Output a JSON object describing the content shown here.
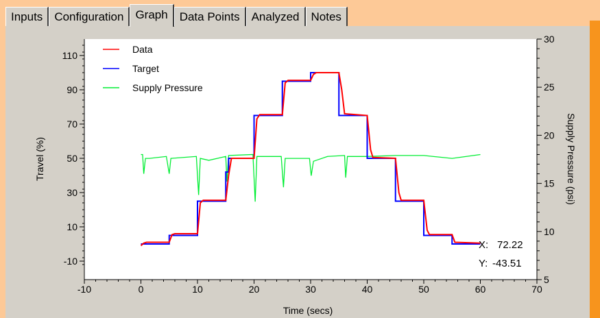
{
  "tabs": [
    {
      "label": "Inputs"
    },
    {
      "label": "Configuration"
    },
    {
      "label": "Graph",
      "active": true
    },
    {
      "label": "Data Points"
    },
    {
      "label": "Analyzed"
    },
    {
      "label": "Notes"
    }
  ],
  "colors": {
    "background": "#fdc997",
    "accent": "#f7941d",
    "panel": "#d4d0c8"
  },
  "chart_data": {
    "type": "line",
    "xlabel": "Time (secs)",
    "ylabel": "Travel (%)",
    "y2label": "Supply Pressure (psi)",
    "xlim": [
      -10,
      70
    ],
    "ylim": [
      -10,
      110
    ],
    "y2lim": [
      5,
      30
    ],
    "xticks": [
      -10,
      0,
      10,
      20,
      30,
      40,
      50,
      60,
      70
    ],
    "yticks": [
      -10,
      10,
      30,
      50,
      70,
      90,
      110
    ],
    "y2ticks": [
      5,
      10,
      15,
      20,
      25,
      30
    ],
    "legend": "top-left",
    "grid": false,
    "series": [
      {
        "name": "Data",
        "color": "#ff0000",
        "axis": "left",
        "points": [
          [
            0,
            -1
          ],
          [
            0.5,
            0.5
          ],
          [
            1,
            1
          ],
          [
            5,
            1
          ],
          [
            5.5,
            5.5
          ],
          [
            6,
            6
          ],
          [
            10,
            6
          ],
          [
            10.5,
            24
          ],
          [
            11,
            25.5
          ],
          [
            15,
            25.5
          ],
          [
            15.5,
            40
          ],
          [
            16,
            50
          ],
          [
            20,
            50
          ],
          [
            20.5,
            73
          ],
          [
            21,
            75.5
          ],
          [
            25,
            75.5
          ],
          [
            25.5,
            94
          ],
          [
            26,
            95.5
          ],
          [
            30,
            95.5
          ],
          [
            30.5,
            99
          ],
          [
            31,
            100
          ],
          [
            35,
            100
          ],
          [
            35.5,
            90
          ],
          [
            36,
            76
          ],
          [
            40,
            75
          ],
          [
            40.6,
            55
          ],
          [
            41,
            50.5
          ],
          [
            45,
            50
          ],
          [
            45.6,
            30
          ],
          [
            46,
            25.5
          ],
          [
            50,
            25.5
          ],
          [
            50.6,
            8
          ],
          [
            51,
            5.5
          ],
          [
            55,
            5.5
          ],
          [
            55.5,
            1
          ],
          [
            60,
            0.5
          ]
        ]
      },
      {
        "name": "Target",
        "color": "#0000ff",
        "axis": "left",
        "points": [
          [
            0,
            0
          ],
          [
            5,
            0
          ],
          [
            5,
            5
          ],
          [
            10,
            5
          ],
          [
            10,
            25
          ],
          [
            15,
            25
          ],
          [
            15,
            42
          ],
          [
            15.5,
            42
          ],
          [
            15.5,
            50
          ],
          [
            20,
            50
          ],
          [
            20,
            75
          ],
          [
            25,
            75
          ],
          [
            25,
            95
          ],
          [
            30,
            95
          ],
          [
            30,
            100
          ],
          [
            35,
            100
          ],
          [
            35,
            75
          ],
          [
            40,
            75
          ],
          [
            40,
            50
          ],
          [
            45,
            50
          ],
          [
            45,
            25
          ],
          [
            50,
            25
          ],
          [
            50,
            5
          ],
          [
            55,
            5
          ],
          [
            55,
            0
          ],
          [
            60,
            0
          ]
        ]
      },
      {
        "name": "Supply Pressure",
        "color": "#00ee33",
        "axis": "right",
        "points": [
          [
            0,
            18
          ],
          [
            0.3,
            18
          ],
          [
            0.5,
            16
          ],
          [
            0.8,
            17.6
          ],
          [
            1.5,
            17.6
          ],
          [
            4.5,
            17.8
          ],
          [
            5,
            16
          ],
          [
            5.3,
            17.6
          ],
          [
            9.8,
            17.8
          ],
          [
            10.2,
            13.8
          ],
          [
            10.5,
            17.6
          ],
          [
            12,
            17.4
          ],
          [
            15,
            17.8
          ],
          [
            15.2,
            15.2
          ],
          [
            15.5,
            17.9
          ],
          [
            19.8,
            18
          ],
          [
            20.2,
            13.1
          ],
          [
            20.5,
            17.8
          ],
          [
            24.8,
            17.8
          ],
          [
            25.2,
            14.6
          ],
          [
            25.5,
            17.6
          ],
          [
            29.8,
            17.6
          ],
          [
            30.1,
            15.8
          ],
          [
            30.5,
            17.3
          ],
          [
            33,
            17.8
          ],
          [
            36,
            17.9
          ],
          [
            36.2,
            15.6
          ],
          [
            36.5,
            17.8
          ],
          [
            40,
            17.8
          ],
          [
            45,
            17.9
          ],
          [
            50,
            17.9
          ],
          [
            55,
            17.6
          ],
          [
            60,
            18
          ]
        ]
      }
    ]
  },
  "cursor": {
    "x_label": "X:",
    "x_value": "72.22",
    "y_label": "Y:",
    "y_value": "-43.51"
  }
}
